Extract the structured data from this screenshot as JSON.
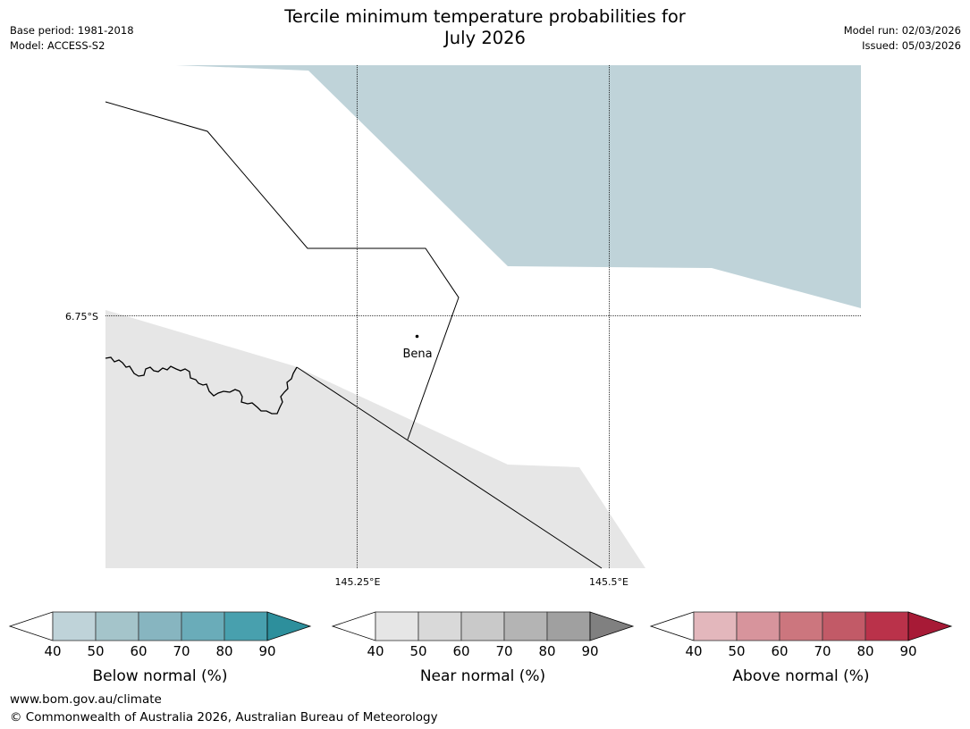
{
  "header": {
    "title": "Tercile minimum temperature probabilities for\nJuly 2026",
    "base_period": "Base period: 1981-2018",
    "model": "Model: ACCESS-S2",
    "model_run": "Model run: 02/03/2026",
    "issued": "Issued: 05/03/2026"
  },
  "map": {
    "lat_label": "6.75°S",
    "lon_labels": [
      "145.25°E",
      "145.5°E"
    ],
    "place": "Bena",
    "regions": [
      {
        "category": "below",
        "probability_band": "40-50"
      },
      {
        "category": "near",
        "probability_band": "40-50"
      }
    ]
  },
  "legends": [
    {
      "key": "below",
      "label": "Below normal (%)",
      "ticks": [
        "40",
        "50",
        "60",
        "70",
        "80",
        "90"
      ],
      "colors": [
        "#bfd3d9",
        "#a4c4ca",
        "#87b5c0",
        "#6aacb9",
        "#48a0ae",
        "#2d8f9c"
      ]
    },
    {
      "key": "near",
      "label": "Near normal (%)",
      "ticks": [
        "40",
        "50",
        "60",
        "70",
        "80",
        "90"
      ],
      "colors": [
        "#e6e6e6",
        "#d9d9d9",
        "#c9c9c9",
        "#b4b4b4",
        "#a0a0a0",
        "#808080"
      ]
    },
    {
      "key": "above",
      "label": "Above normal (%)",
      "ticks": [
        "40",
        "50",
        "60",
        "70",
        "80",
        "90"
      ],
      "colors": [
        "#e3b7bc",
        "#d7949c",
        "#cc767e",
        "#c25a67",
        "#ba324a",
        "#a71a36"
      ]
    }
  ],
  "footer": {
    "url": "www.bom.gov.au/climate",
    "copyright": "© Commonwealth of Australia 2026, Australian Bureau of Meteorology"
  }
}
